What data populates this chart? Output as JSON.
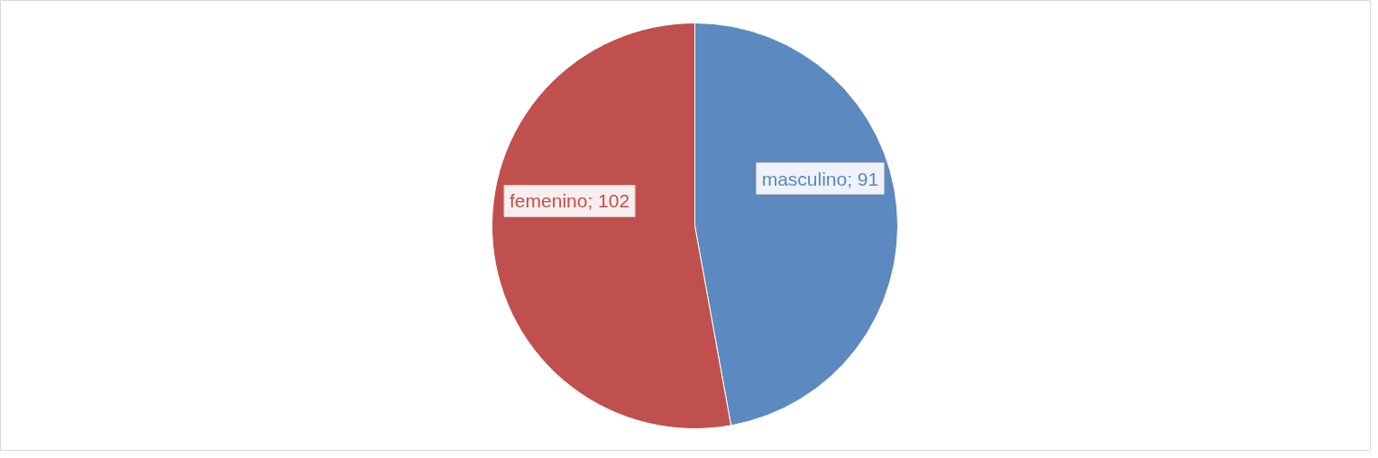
{
  "chart_data": {
    "type": "pie",
    "categories": [
      "masculino",
      "femenino"
    ],
    "values": [
      91,
      102
    ],
    "colors": [
      "#5b89c0",
      "#c0504d"
    ],
    "value_labels": [
      "; 91",
      "; 102"
    ],
    "legend": false
  }
}
